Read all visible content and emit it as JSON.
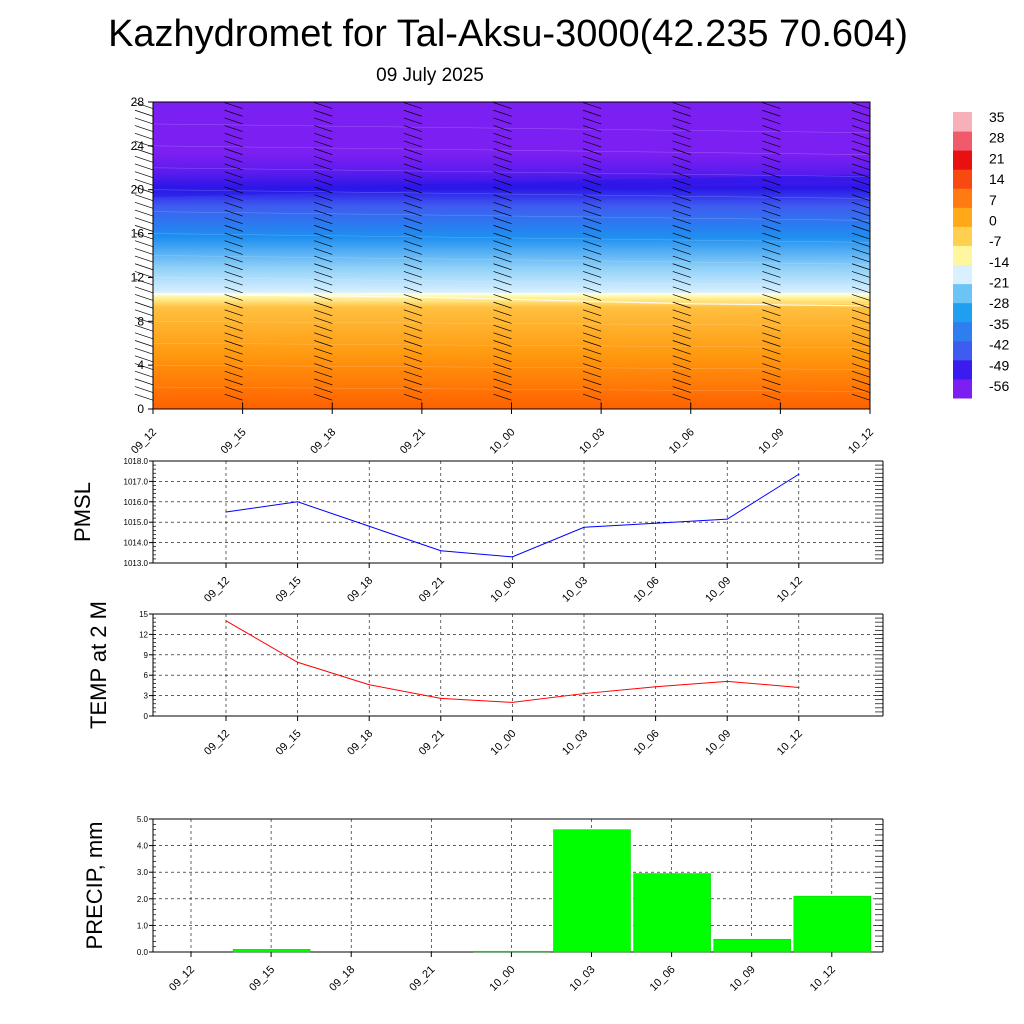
{
  "title": "Kazhydromet for Tal-Aksu-3000(42.235 70.604)",
  "subtitle": "09 July 2025",
  "chart_data": [
    {
      "type": "heatmap",
      "description_units": "temperature cross-section",
      "x_categories": [
        "09_12",
        "09_15",
        "09_18",
        "09_21",
        "10_00",
        "10_03",
        "10_06",
        "10_09",
        "10_12"
      ],
      "yticks": [
        0,
        4,
        8,
        12,
        16,
        20,
        24,
        28
      ],
      "ylim": [
        0,
        28
      ],
      "colorbar_labels": [
        "35",
        "28",
        "21",
        "14",
        "7",
        "0",
        "-7",
        "-14",
        "-21",
        "-28",
        "-35",
        "-42",
        "-49",
        "-56"
      ],
      "freezing_level": [
        10.5,
        10.4,
        10.3,
        10.2,
        10.0,
        9.8,
        9.6,
        9.5,
        9.4
      ],
      "tropopause_level": [
        19.6,
        19.8,
        20.0,
        20.2,
        20.4,
        20.6,
        20.8,
        21.0,
        21.1
      ],
      "colors": {
        "cold": "#7b1ff2",
        "deep": "#2a16e8",
        "blue": "#1e8ff0",
        "light": "#d8f0ff",
        "yellow": "#fff6a0",
        "orange": "#ff9a10",
        "hot": "#ff6000"
      }
    },
    {
      "type": "line",
      "ylabel": "PMSL",
      "categories": [
        "09_12",
        "09_15",
        "09_18",
        "09_21",
        "10_00",
        "10_03",
        "10_06",
        "10_09",
        "10_12"
      ],
      "values": [
        1015.5,
        1016.0,
        1014.8,
        1013.6,
        1013.3,
        1014.75,
        1014.95,
        1015.15,
        1017.35
      ],
      "ylim": [
        1013.0,
        1018.0
      ],
      "yticks": [
        "1013.0",
        "1014.0",
        "1015.0",
        "1016.0",
        "1017.0",
        "1018.0"
      ],
      "color": "#0000ff",
      "grid": true
    },
    {
      "type": "line",
      "ylabel": "TEMP at 2 M",
      "categories": [
        "09_12",
        "09_15",
        "09_18",
        "09_21",
        "10_00",
        "10_03",
        "10_06",
        "10_09",
        "10_12"
      ],
      "values": [
        14.0,
        7.9,
        4.6,
        2.6,
        2.0,
        3.3,
        4.3,
        5.1,
        4.2
      ],
      "ylim": [
        0,
        15
      ],
      "yticks": [
        "0",
        "3",
        "6",
        "9",
        "12",
        "15"
      ],
      "color": "#ff0000",
      "grid": true
    },
    {
      "type": "bar",
      "ylabel": "PRECIP, mm",
      "categories": [
        "09_12",
        "09_15",
        "09_18",
        "09_21",
        "10_00",
        "10_03",
        "10_06",
        "10_09",
        "10_12"
      ],
      "values": [
        0.0,
        0.1,
        0.0,
        0.0,
        0.03,
        4.6,
        2.95,
        0.48,
        2.1
      ],
      "ylim": [
        0.0,
        5.0
      ],
      "yticks": [
        "0.0",
        "1.0",
        "2.0",
        "3.0",
        "4.0",
        "5.0"
      ],
      "color": "#00ff00",
      "grid": true
    }
  ]
}
